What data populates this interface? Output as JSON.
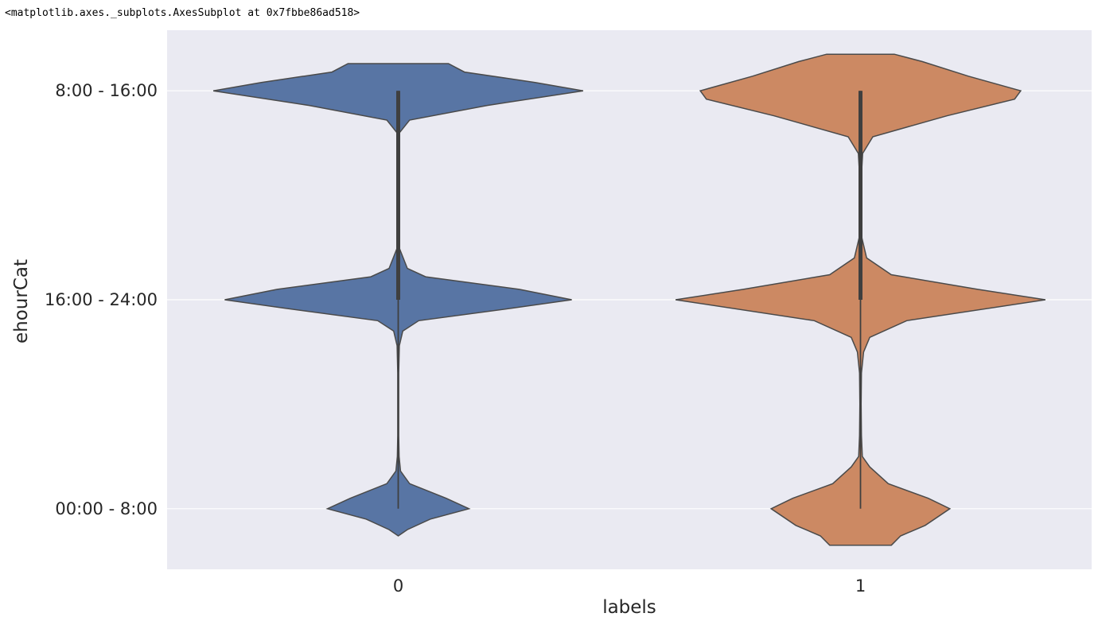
{
  "output_repr": "<matplotlib.axes._subplots.AxesSubplot at 0x7fbbe86ad518>",
  "chart_data": {
    "type": "violin",
    "xlabel": "labels",
    "ylabel": "ehourCat",
    "categories": [
      "0",
      "1"
    ],
    "y_categories": [
      "00:00 - 8:00",
      "16:00 - 24:00",
      "8:00 - 16:00"
    ],
    "y_codes": [
      0,
      1,
      2
    ],
    "ylim": [
      2.29,
      -0.29
    ],
    "grid": true,
    "series": [
      {
        "category": "0",
        "color": "#5875a4",
        "density": [
          [
            -0.13,
            0.0
          ],
          [
            -0.1,
            0.04
          ],
          [
            -0.05,
            0.14
          ],
          [
            0.0,
            0.31
          ],
          [
            0.05,
            0.21
          ],
          [
            0.12,
            0.05
          ],
          [
            0.18,
            0.01
          ],
          [
            0.25,
            0.004
          ],
          [
            0.35,
            0.002
          ],
          [
            0.5,
            0.002
          ],
          [
            0.65,
            0.002
          ],
          [
            0.78,
            0.005
          ],
          [
            0.85,
            0.02
          ],
          [
            0.9,
            0.09
          ],
          [
            0.96,
            0.5
          ],
          [
            1.0,
            0.76
          ],
          [
            1.05,
            0.53
          ],
          [
            1.11,
            0.12
          ],
          [
            1.15,
            0.04
          ],
          [
            1.25,
            0.004
          ],
          [
            1.4,
            0.002
          ],
          [
            1.55,
            0.002
          ],
          [
            1.7,
            0.002
          ],
          [
            1.8,
            0.006
          ],
          [
            1.86,
            0.05
          ],
          [
            1.93,
            0.39
          ],
          [
            2.0,
            0.81
          ],
          [
            2.04,
            0.6
          ],
          [
            2.09,
            0.29
          ],
          [
            2.13,
            0.22
          ]
        ],
        "box": {
          "q1": 1.0,
          "q3": 2.0,
          "median": 2.0,
          "whisker_low": 0.0,
          "whisker_high": 2.0
        }
      },
      {
        "category": "1",
        "color": "#cc8963",
        "density": [
          [
            -0.175,
            0.1
          ],
          [
            -0.13,
            0.13
          ],
          [
            -0.08,
            0.21
          ],
          [
            0.0,
            0.29
          ],
          [
            0.05,
            0.22
          ],
          [
            0.12,
            0.09
          ],
          [
            0.2,
            0.03
          ],
          [
            0.25,
            0.006
          ],
          [
            0.35,
            0.003
          ],
          [
            0.5,
            0.002
          ],
          [
            0.65,
            0.003
          ],
          [
            0.75,
            0.01
          ],
          [
            0.82,
            0.03
          ],
          [
            0.9,
            0.15
          ],
          [
            1.0,
            0.6
          ],
          [
            1.05,
            0.38
          ],
          [
            1.12,
            0.1
          ],
          [
            1.2,
            0.02
          ],
          [
            1.3,
            0.004
          ],
          [
            1.45,
            0.003
          ],
          [
            1.6,
            0.003
          ],
          [
            1.7,
            0.007
          ],
          [
            1.78,
            0.04
          ],
          [
            1.88,
            0.28
          ],
          [
            1.96,
            0.5
          ],
          [
            2.0,
            0.52
          ],
          [
            2.07,
            0.35
          ],
          [
            2.14,
            0.2
          ],
          [
            2.175,
            0.11
          ]
        ],
        "box": {
          "q1": 1.0,
          "q3": 2.0,
          "median": 2.0,
          "whisker_low": 0.0,
          "whisker_high": 2.0
        }
      }
    ]
  }
}
